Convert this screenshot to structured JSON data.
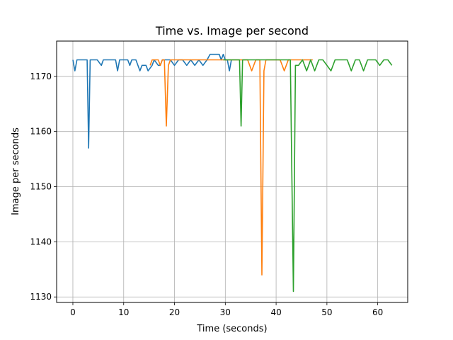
{
  "chart_data": {
    "type": "line",
    "title": "Time vs. Image per second",
    "xlabel": "Time (seconds)",
    "ylabel": "Image per seconds",
    "xlim": [
      -3.2,
      65.9
    ],
    "ylim": [
      1129,
      1176.4
    ],
    "xticks": [
      0,
      10,
      20,
      30,
      40,
      50,
      60
    ],
    "yticks": [
      1130,
      1140,
      1150,
      1160,
      1170
    ],
    "grid": true,
    "series": [
      {
        "color": "#1f77b4",
        "x": [
          0.0,
          0.4,
          0.8,
          1.2,
          1.6,
          2.0,
          2.4,
          2.8,
          3.1,
          3.4,
          4.0,
          4.8,
          5.6,
          6.0,
          6.8,
          7.6,
          8.4,
          8.8,
          9.2,
          10.0,
          10.8,
          11.2,
          11.6,
          12.4,
          13.2,
          13.6,
          14.0,
          14.4,
          14.8,
          15.6,
          16.0,
          16.8,
          17.2,
          17.6,
          18.4,
          19.2,
          20.0,
          20.8,
          21.6,
          22.4,
          23.2,
          24.0,
          24.8,
          25.6,
          26.4,
          27.0,
          27.6,
          28.4,
          28.8,
          29.2,
          29.6,
          30.0,
          30.4,
          30.8,
          31.2
        ],
        "values": [
          1173,
          1171,
          1173,
          1173,
          1173,
          1173,
          1173,
          1173,
          1157,
          1173,
          1173,
          1173,
          1172,
          1173,
          1173,
          1173,
          1173,
          1171,
          1173,
          1173,
          1173,
          1172,
          1173,
          1173,
          1171,
          1172,
          1172,
          1172,
          1171,
          1172,
          1173,
          1172,
          1172,
          1173,
          1173,
          1173,
          1172,
          1173,
          1173,
          1172,
          1173,
          1172,
          1173,
          1172,
          1173,
          1174,
          1174,
          1174,
          1174,
          1173,
          1174,
          1173,
          1173,
          1171,
          1173
        ]
      },
      {
        "color": "#ff7f0e",
        "x": [
          15.2,
          15.6,
          16.0,
          16.8,
          17.2,
          17.6,
          18.0,
          18.4,
          18.8,
          19.2,
          20.0,
          20.8,
          21.6,
          22.4,
          23.2,
          24.0,
          24.8,
          25.6,
          26.4,
          27.2,
          28.0,
          28.8,
          29.6,
          30.4,
          31.2,
          32.0,
          32.8,
          33.6,
          34.4,
          35.2,
          36.0,
          36.8,
          37.2,
          37.6,
          38.0,
          38.4,
          39.2,
          40.0,
          40.8,
          41.6,
          42.4,
          43.2,
          44.0,
          44.8,
          45.6,
          46.4,
          47.2
        ],
        "values": [
          1172,
          1173,
          1173,
          1173,
          1172,
          1173,
          1173,
          1161,
          1172,
          1173,
          1173,
          1173,
          1173,
          1173,
          1173,
          1173,
          1173,
          1173,
          1173,
          1173,
          1173,
          1173,
          1173,
          1173,
          1173,
          1173,
          1173,
          1173,
          1173,
          1171,
          1173,
          1173,
          1134,
          1171,
          1173,
          1173,
          1173,
          1173,
          1173,
          1171,
          1173,
          1173,
          1173,
          1173,
          1173,
          1173,
          1173
        ]
      },
      {
        "color": "#2ca02c",
        "x": [
          29.6,
          30.4,
          31.2,
          32.0,
          32.8,
          33.1,
          33.4,
          34.0,
          34.8,
          35.6,
          36.4,
          37.2,
          38.0,
          38.8,
          39.6,
          40.4,
          41.2,
          42.0,
          42.8,
          43.4,
          43.8,
          44.4,
          45.2,
          46.0,
          46.8,
          47.6,
          48.4,
          49.2,
          50.0,
          50.8,
          51.6,
          52.4,
          53.2,
          54.0,
          54.8,
          55.6,
          56.4,
          57.2,
          58.0,
          58.8,
          59.6,
          60.4,
          61.2,
          62.0,
          62.8
        ],
        "values": [
          1173,
          1173,
          1173,
          1173,
          1173,
          1161,
          1173,
          1173,
          1173,
          1173,
          1173,
          1173,
          1173,
          1173,
          1173,
          1173,
          1173,
          1173,
          1173,
          1131,
          1172,
          1172,
          1173,
          1171,
          1173,
          1171,
          1173,
          1173,
          1172,
          1171,
          1173,
          1173,
          1173,
          1173,
          1171,
          1173,
          1173,
          1171,
          1173,
          1173,
          1173,
          1172,
          1173,
          1173,
          1172
        ]
      }
    ]
  }
}
